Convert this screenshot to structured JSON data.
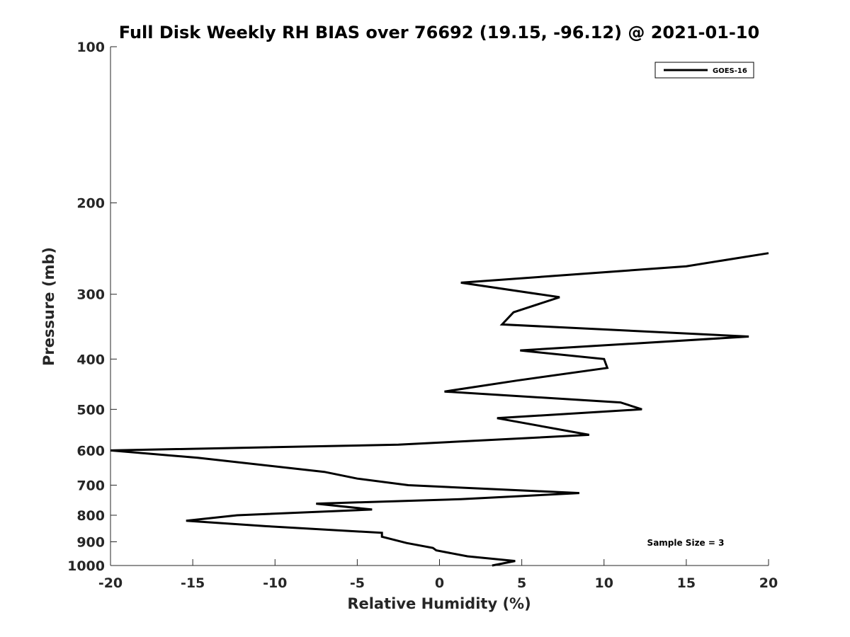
{
  "chart_data": {
    "type": "line",
    "title": "Full Disk Weekly RH BIAS over 76692 (19.15, -96.12) @ 2021-01-10",
    "xlabel": "Relative Humidity (%)",
    "ylabel": "Pressure (mb)",
    "xlim": [
      -20,
      20
    ],
    "ylim": [
      100,
      1000
    ],
    "y_scale": "log",
    "y_reversed": true,
    "grid": false,
    "legend_position": "top-right",
    "x_ticks": [
      "-20",
      "-15",
      "-10",
      "-5",
      "0",
      "5",
      "10",
      "15",
      "20"
    ],
    "y_ticks": [
      "100",
      "200",
      "300",
      "400",
      "500",
      "600",
      "700",
      "800",
      "900",
      "1000"
    ],
    "annotation": "Sample Size = 3",
    "series": [
      {
        "name": "GOES-16",
        "color": "#000000",
        "points": [
          {
            "x": 20.0,
            "y": 250
          },
          {
            "x": 15.0,
            "y": 265
          },
          {
            "x": 1.3,
            "y": 285
          },
          {
            "x": 7.3,
            "y": 304
          },
          {
            "x": 4.5,
            "y": 325
          },
          {
            "x": 3.8,
            "y": 343
          },
          {
            "x": 18.8,
            "y": 362
          },
          {
            "x": 4.9,
            "y": 385
          },
          {
            "x": 10.0,
            "y": 400
          },
          {
            "x": 10.2,
            "y": 416
          },
          {
            "x": 4.7,
            "y": 440
          },
          {
            "x": 0.3,
            "y": 462
          },
          {
            "x": 11.0,
            "y": 485
          },
          {
            "x": 12.3,
            "y": 500
          },
          {
            "x": 3.5,
            "y": 520
          },
          {
            "x": 9.1,
            "y": 560
          },
          {
            "x": -2.5,
            "y": 585
          },
          {
            "x": -20.0,
            "y": 600
          },
          {
            "x": -14.7,
            "y": 620
          },
          {
            "x": -7.0,
            "y": 660
          },
          {
            "x": -5.0,
            "y": 680
          },
          {
            "x": -1.9,
            "y": 700
          },
          {
            "x": 8.5,
            "y": 725
          },
          {
            "x": 1.3,
            "y": 745
          },
          {
            "x": -7.5,
            "y": 760
          },
          {
            "x": -4.1,
            "y": 780
          },
          {
            "x": -12.3,
            "y": 800
          },
          {
            "x": -15.4,
            "y": 820
          },
          {
            "x": -10.5,
            "y": 840
          },
          {
            "x": -3.5,
            "y": 865
          },
          {
            "x": -3.5,
            "y": 880
          },
          {
            "x": -2.0,
            "y": 905
          },
          {
            "x": -0.4,
            "y": 925
          },
          {
            "x": -0.2,
            "y": 935
          },
          {
            "x": 1.7,
            "y": 960
          },
          {
            "x": 4.6,
            "y": 980
          },
          {
            "x": 3.2,
            "y": 1000
          }
        ]
      }
    ]
  }
}
